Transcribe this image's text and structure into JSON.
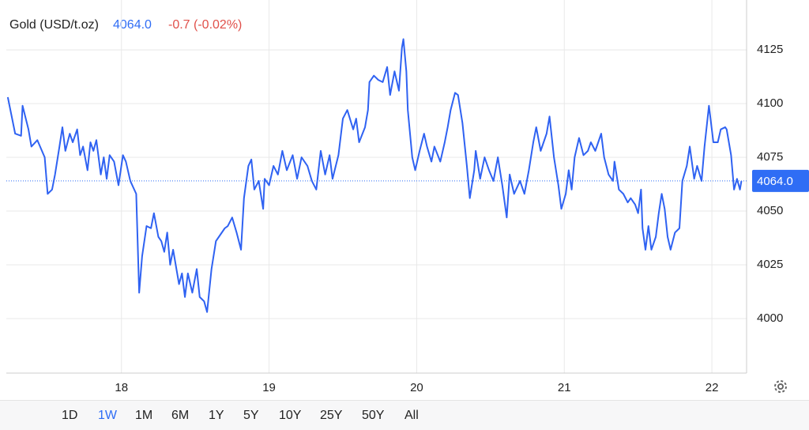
{
  "chart_data": {
    "type": "line",
    "title": "Gold (USD/t.oz)",
    "last_price": {
      "value": 4064,
      "label": "4064.0"
    },
    "change": "-0.7 (-0.02%)",
    "x": [
      17.23,
      17.28,
      17.32,
      17.33,
      17.37,
      17.39,
      17.43,
      17.48,
      17.5,
      17.53,
      17.55,
      17.58,
      17.6,
      17.62,
      17.65,
      17.67,
      17.7,
      17.72,
      17.74,
      17.77,
      17.79,
      17.81,
      17.83,
      17.86,
      17.88,
      17.9,
      17.92,
      17.95,
      17.98,
      18.01,
      18.03,
      18.06,
      18.1,
      18.12,
      18.14,
      18.17,
      18.2,
      18.22,
      18.25,
      18.27,
      18.29,
      18.31,
      18.33,
      18.35,
      18.39,
      18.41,
      18.43,
      18.45,
      18.48,
      18.51,
      18.53,
      18.56,
      18.58,
      18.61,
      18.64,
      18.66,
      18.7,
      18.72,
      18.75,
      18.78,
      18.81,
      18.83,
      18.86,
      18.88,
      18.9,
      18.93,
      18.96,
      18.97,
      19.0,
      19.03,
      19.06,
      19.09,
      19.12,
      19.16,
      19.19,
      19.22,
      19.26,
      19.29,
      19.32,
      19.35,
      19.38,
      19.41,
      19.43,
      19.47,
      19.5,
      19.53,
      19.57,
      19.59,
      19.61,
      19.65,
      19.67,
      19.68,
      19.71,
      19.74,
      19.77,
      19.8,
      19.82,
      19.85,
      19.88,
      19.9,
      19.91,
      19.93,
      19.94,
      19.97,
      19.99,
      20.02,
      20.05,
      20.07,
      20.1,
      20.12,
      20.16,
      20.19,
      20.21,
      20.23,
      20.26,
      20.28,
      20.31,
      20.34,
      20.36,
      20.39,
      20.4,
      20.43,
      20.46,
      20.49,
      20.52,
      20.55,
      20.58,
      20.61,
      20.63,
      20.66,
      20.7,
      20.73,
      20.76,
      20.79,
      20.81,
      20.84,
      20.88,
      20.9,
      20.93,
      20.96,
      20.98,
      21.01,
      21.03,
      21.05,
      21.07,
      21.1,
      21.13,
      21.16,
      21.18,
      21.21,
      21.25,
      21.27,
      21.3,
      21.33,
      21.34,
      21.37,
      21.4,
      21.43,
      21.45,
      21.48,
      21.5,
      21.52,
      21.53,
      21.55,
      21.57,
      21.59,
      21.62,
      21.64,
      21.66,
      21.68,
      21.7,
      21.72,
      21.75,
      21.78,
      21.8,
      21.83,
      21.85,
      21.88,
      21.9,
      21.93,
      21.95,
      21.98,
      22.01,
      22.04,
      22.06,
      22.09,
      22.1,
      22.13,
      22.15,
      22.17,
      22.19,
      22.2
    ],
    "series": [
      {
        "color": "#2f62f2",
        "values": [
          4103,
          4086,
          4085,
          4099,
          4088,
          4080,
          4083,
          4075,
          4058,
          4060,
          4067,
          4080,
          4089,
          4078,
          4086,
          4082,
          4088,
          4076,
          4080,
          4069,
          4082,
          4078,
          4083,
          4067,
          4075,
          4065,
          4076,
          4073,
          4062,
          4076,
          4073,
          4064,
          4058,
          4012,
          4029,
          4043,
          4042,
          4049,
          4038,
          4036,
          4031,
          4040,
          4025,
          4032,
          4016,
          4021,
          4010,
          4021,
          4012,
          4023,
          4010,
          4008,
          4003,
          4023,
          4036,
          4038,
          4042,
          4043,
          4047,
          4040,
          4032,
          4056,
          4071,
          4074,
          4060,
          4064,
          4051,
          4065,
          4062,
          4071,
          4067,
          4078,
          4069,
          4076,
          4065,
          4075,
          4071,
          4064,
          4060,
          4078,
          4067,
          4076,
          4065,
          4076,
          4093,
          4097,
          4088,
          4093,
          4082,
          4089,
          4097,
          4110,
          4113,
          4111,
          4110,
          4117,
          4104,
          4115,
          4106,
          4126,
          4130,
          4115,
          4097,
          4075,
          4069,
          4078,
          4086,
          4080,
          4073,
          4080,
          4073,
          4082,
          4089,
          4097,
          4105,
          4104,
          4091,
          4071,
          4056,
          4069,
          4078,
          4065,
          4075,
          4069,
          4064,
          4075,
          4062,
          4047,
          4067,
          4058,
          4064,
          4058,
          4069,
          4082,
          4089,
          4078,
          4086,
          4094,
          4075,
          4062,
          4051,
          4058,
          4069,
          4060,
          4075,
          4084,
          4076,
          4078,
          4082,
          4078,
          4086,
          4075,
          4067,
          4064,
          4073,
          4060,
          4058,
          4054,
          4056,
          4053,
          4049,
          4060,
          4042,
          4032,
          4043,
          4032,
          4038,
          4049,
          4058,
          4051,
          4038,
          4032,
          4040,
          4042,
          4064,
          4071,
          4080,
          4065,
          4071,
          4064,
          4080,
          4099,
          4082,
          4082,
          4088,
          4089,
          4088,
          4076,
          4060,
          4065,
          4060,
          4064
        ]
      }
    ],
    "xlim": [
      17.22,
      22.235
    ],
    "ylim": [
      3974.6,
      4148.2
    ],
    "xticks": [
      18,
      19,
      20,
      21,
      22
    ],
    "yticks": [
      4000,
      4025,
      4050,
      4075,
      4100,
      4125
    ],
    "grid": true
  },
  "timeframes": {
    "options": [
      "1D",
      "1W",
      "1M",
      "6M",
      "1Y",
      "5Y",
      "10Y",
      "25Y",
      "50Y",
      "All"
    ],
    "active": 1
  }
}
